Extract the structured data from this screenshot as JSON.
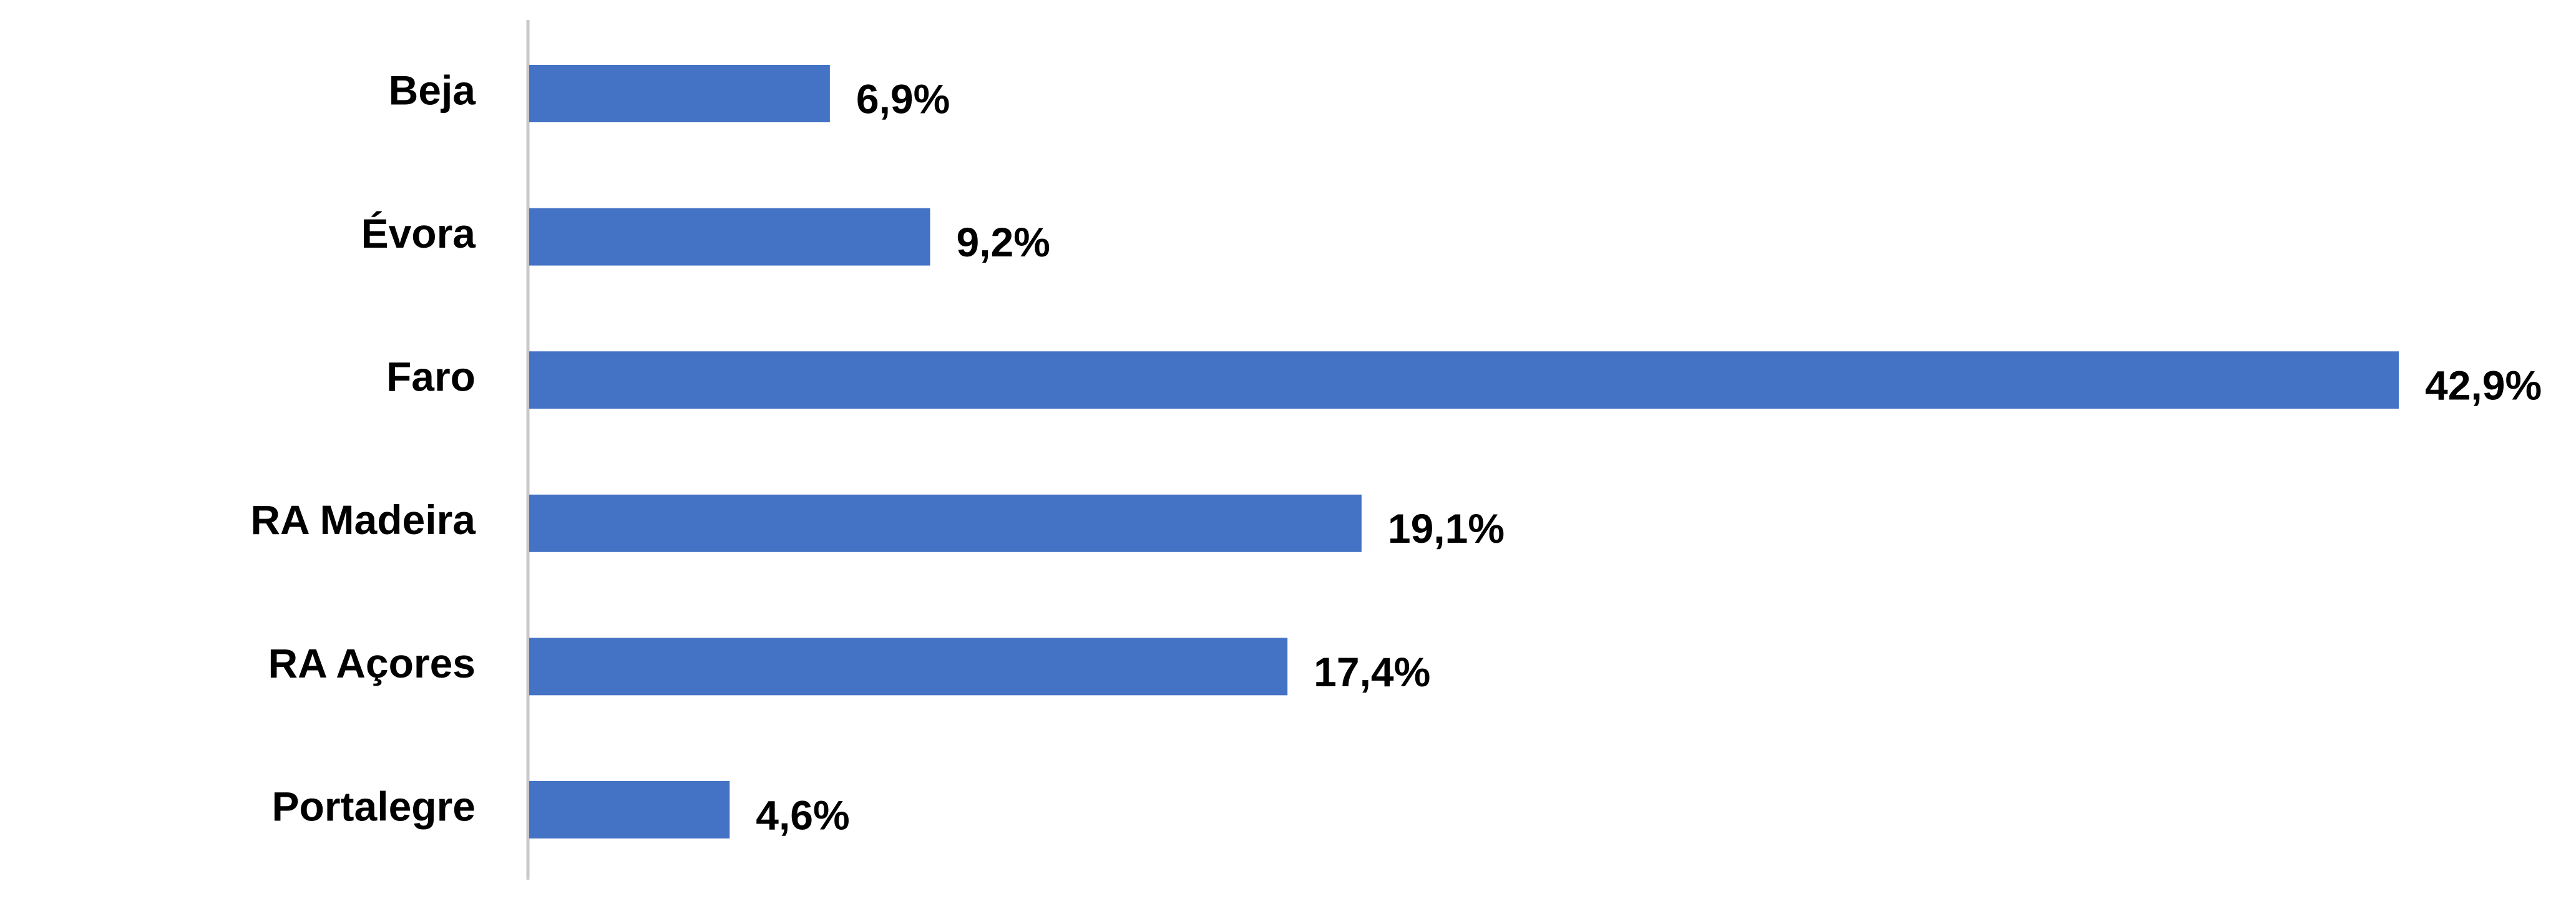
{
  "chart_data": {
    "type": "bar",
    "orientation": "horizontal",
    "categories": [
      "Beja",
      "Évora",
      "Faro",
      "RA Madeira",
      "RA Açores",
      "Portalegre"
    ],
    "values": [
      6.9,
      9.2,
      42.9,
      19.1,
      17.4,
      4.6
    ],
    "value_labels": [
      "6,9%",
      "9,2%",
      "42,9%",
      "19,1%",
      "17,4%",
      "4,6%"
    ],
    "color": "#4472c4"
  }
}
